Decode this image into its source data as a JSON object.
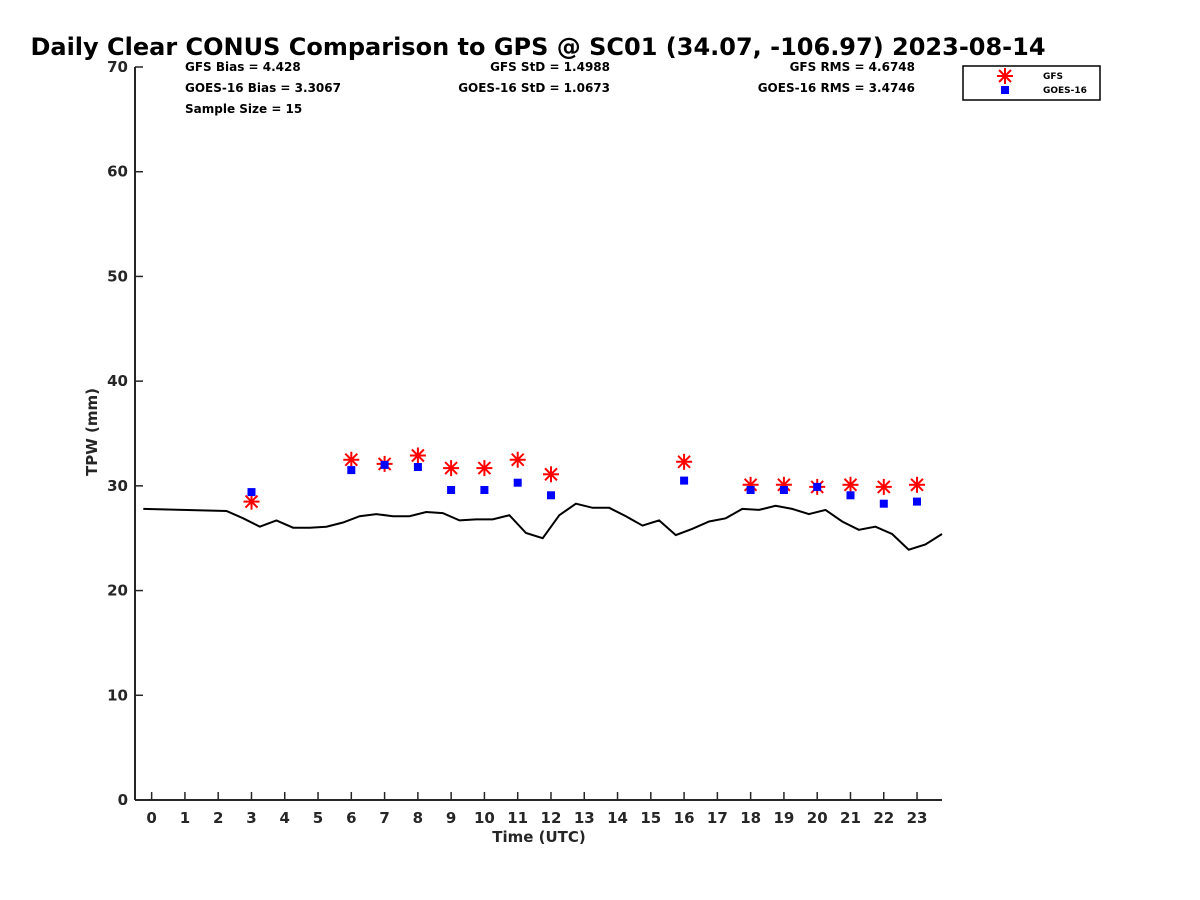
{
  "chart_data": {
    "type": "scatter",
    "title": "Daily Clear CONUS Comparison to GPS @ SC01 (34.07, -106.97) 2023-08-14",
    "xlabel": "Time (UTC)",
    "ylabel": "TPW (mm)",
    "xlim": [
      -0.5,
      23.75
    ],
    "ylim": [
      0,
      70
    ],
    "x_ticks": [
      0,
      1,
      2,
      3,
      4,
      5,
      6,
      7,
      8,
      9,
      10,
      11,
      12,
      13,
      14,
      15,
      16,
      17,
      18,
      19,
      20,
      21,
      22,
      23
    ],
    "x_tick_labels": [
      "0",
      "1",
      "2",
      "3",
      "4",
      "5",
      "6",
      "7",
      "8",
      "9",
      "10",
      "11",
      "12",
      "13",
      "14",
      "15",
      "16",
      "17",
      "18",
      "19",
      "20",
      "21",
      "22",
      "23"
    ],
    "y_ticks": [
      0,
      10,
      20,
      30,
      40,
      50,
      60,
      70
    ],
    "y_tick_labels": [
      "0",
      "10",
      "20",
      "30",
      "40",
      "50",
      "60",
      "70"
    ],
    "grid": false,
    "legend_position": "top-right",
    "legend": [
      "GFS",
      "GOES-16"
    ],
    "series": [
      {
        "name": "GFS",
        "marker": "asterisk",
        "color": "#ff0000",
        "x": [
          3,
          6,
          7,
          8,
          9,
          10,
          11,
          12,
          16,
          18,
          19,
          20,
          21,
          22,
          23
        ],
        "y": [
          28.5,
          32.5,
          32.1,
          32.9,
          31.7,
          31.7,
          32.5,
          31.1,
          32.3,
          30.1,
          30.1,
          29.9,
          30.1,
          29.9,
          30.1
        ]
      },
      {
        "name": "GOES-16",
        "marker": "square",
        "color": "#0000ff",
        "x": [
          3,
          6,
          7,
          8,
          9,
          10,
          11,
          12,
          16,
          18,
          19,
          20,
          21,
          22,
          23
        ],
        "y": [
          29.4,
          31.5,
          32.0,
          31.8,
          29.6,
          29.6,
          30.3,
          29.1,
          30.5,
          29.6,
          29.6,
          29.9,
          29.1,
          28.3,
          28.5
        ]
      },
      {
        "type": "line",
        "color": "#000000",
        "x": [
          -0.25,
          2.25,
          2.75,
          3.25,
          3.75,
          4.25,
          4.75,
          5.25,
          5.75,
          6.25,
          6.75,
          7.25,
          7.75,
          8.25,
          8.75,
          9.25,
          9.75,
          10.25,
          10.75,
          11.25,
          11.75,
          12.25,
          12.75,
          13.25,
          13.75,
          14.25,
          14.75,
          15.25,
          15.75,
          16.25,
          16.75,
          17.25,
          17.75,
          18.25,
          18.75,
          19.25,
          19.75,
          20.25,
          20.75,
          21.25,
          21.75,
          22.25,
          22.75,
          23.25,
          23.75
        ],
        "y": [
          27.8,
          27.6,
          26.9,
          26.1,
          26.7,
          26.0,
          26.0,
          26.1,
          26.5,
          27.1,
          27.3,
          27.1,
          27.1,
          27.5,
          27.4,
          26.7,
          26.8,
          26.8,
          27.2,
          25.5,
          25.0,
          27.2,
          28.3,
          27.9,
          27.9,
          27.1,
          26.2,
          26.7,
          25.3,
          25.9,
          26.6,
          26.9,
          27.8,
          27.7,
          28.1,
          27.8,
          27.3,
          27.7,
          26.6,
          25.8,
          26.1,
          25.4,
          23.9,
          24.4,
          25.4
        ]
      }
    ],
    "stats": {
      "gfs_bias": "GFS Bias = 4.428",
      "goes_bias": "GOES-16 Bias = 3.3067",
      "sample_size": "Sample Size = 15",
      "gfs_std": "GFS StD = 1.4988",
      "goes_std": "GOES-16 StD = 1.0673",
      "gfs_rms": "GFS RMS = 4.6748",
      "goes_rms": "GOES-16 RMS = 3.4746"
    }
  }
}
